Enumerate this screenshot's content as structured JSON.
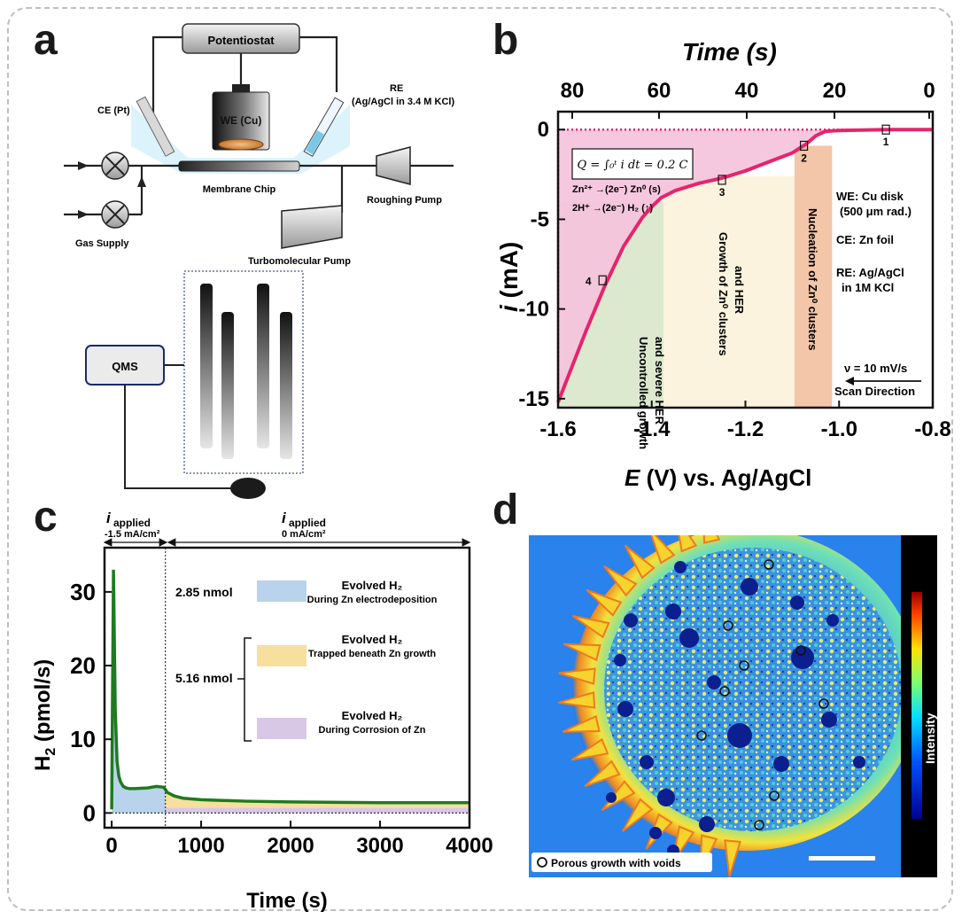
{
  "panels": [
    "a",
    "b",
    "c",
    "d"
  ],
  "panel_a": {
    "potentiostat": "Potentiostat",
    "ce": "CE (Pt)",
    "we": "WE (Cu)",
    "re_line1": "RE",
    "re_line2": "(Ag/AgCl in 3.4 M KCl)",
    "membrane": "Membrane Chip",
    "roughing": "Roughing Pump",
    "turbo": "Turbomolecular Pump",
    "gas": "Gas Supply",
    "qms": "QMS"
  },
  "chart_data": [
    {
      "panel": "b",
      "type": "line",
      "xlabel_top": "Time (s)",
      "xlabel": "E (V) vs. Ag/AgCl",
      "ylabel": "i (mA)",
      "xlim": [
        -1.6,
        -0.8
      ],
      "ylim": [
        -15.5,
        1
      ],
      "xticks": [
        "-1.6",
        "-1.4",
        "-1.2",
        "-1.0",
        "-0.8"
      ],
      "yticks": [
        "0",
        "-5",
        "-10",
        "-15"
      ],
      "top_ticks": [
        "80",
        "60",
        "40",
        "20",
        "0"
      ],
      "x": [
        -1.6,
        -1.57,
        -1.54,
        -1.5,
        -1.46,
        -1.42,
        -1.4,
        -1.38,
        -1.35,
        -1.3,
        -1.25,
        -1.2,
        -1.15,
        -1.1,
        -1.07,
        -1.05,
        -1.03,
        -1.0,
        -0.9,
        -0.8
      ],
      "y": [
        -15.2,
        -13.2,
        -11.2,
        -8.7,
        -6.5,
        -4.9,
        -4.3,
        -3.8,
        -3.4,
        -3.0,
        -2.7,
        -2.3,
        -1.8,
        -1.3,
        -0.8,
        -0.35,
        -0.1,
        -0.05,
        0.0,
        0.0
      ],
      "points": [
        {
          "label": "1",
          "x": -0.9,
          "y": 0.0
        },
        {
          "label": "2",
          "x": -1.075,
          "y": -0.9
        },
        {
          "label": "3",
          "x": -1.25,
          "y": -2.8
        },
        {
          "label": "4",
          "x": -1.505,
          "y": -8.4
        }
      ],
      "regions": [
        {
          "label": "Uncontrolled growth and severe HER",
          "from": -1.6,
          "to": -1.375,
          "color": "#dce9cf"
        },
        {
          "label": "Growth of Zn⁰ clusters and HER",
          "from": -1.375,
          "to": -1.095,
          "color": "#fbf3dd"
        },
        {
          "label": "Nucleation of Zn⁰ clusters",
          "from": -1.095,
          "to": -1.015,
          "color": "#f3c6a9"
        }
      ],
      "integral_box": "Q = ∫₀ᵗ i dt = 0.2 C",
      "reaction1": "Zn²⁺ →(2e⁻) Zn⁰ (s)",
      "reaction2": "2H⁺ →(2e⁻) H₂ (↑)",
      "legend_lines": [
        "WE: Cu disk",
        "(500 μm rad.)",
        "CE: Zn foil",
        "RE: Ag/AgCl",
        "in 1M KCl"
      ],
      "scan_rate": "ν = 10 mV/s",
      "scan_direction": "Scan Direction",
      "line_color": "#e6246e",
      "fill_color": "#f5c2dc"
    },
    {
      "panel": "c",
      "type": "area",
      "xlabel": "Time (s)",
      "ylabel": "H2 (pmol/s)",
      "xlim": [
        -80,
        4000
      ],
      "ylim": [
        -2,
        36
      ],
      "xticks": [
        "0",
        "1000",
        "2000",
        "3000",
        "4000"
      ],
      "yticks": [
        "0",
        "10",
        "20",
        "30"
      ],
      "x": [
        0,
        20,
        40,
        60,
        80,
        100,
        130,
        160,
        200,
        260,
        320,
        400,
        500,
        580,
        600,
        620,
        700,
        800,
        1000,
        1500,
        2000,
        3000,
        4000
      ],
      "y": [
        0.5,
        33,
        14,
        7,
        5,
        4.2,
        3.6,
        3.4,
        3.3,
        3.3,
        3.35,
        3.4,
        3.6,
        3.5,
        3.2,
        2.8,
        2.3,
        2.0,
        1.8,
        1.6,
        1.5,
        1.4,
        1.4
      ],
      "applied1_label": "i",
      "applied1_sub": "applied",
      "applied1_value": "-1.5 mA/cm²",
      "applied2_label": "i",
      "applied2_sub": "applied",
      "applied2_value": "0 mA/cm²",
      "nmol1": "2.85 nmol",
      "nmol2": "5.16 nmol",
      "legend": [
        {
          "title": "Evolved H₂",
          "sub": "During Zn electrodeposition",
          "color": "#b9d3ec"
        },
        {
          "title": "Evolved H₂",
          "sub": "Trapped beneath Zn growth",
          "color": "#f7df9e"
        },
        {
          "title": "Evolved H₂",
          "sub": "During Corrosion of Zn",
          "color": "#d9c7e6"
        }
      ],
      "line_color": "#1f7a1f"
    }
  ],
  "panel_d": {
    "colorbar_label": "Intensity",
    "legend": "Porous growth with voids"
  }
}
